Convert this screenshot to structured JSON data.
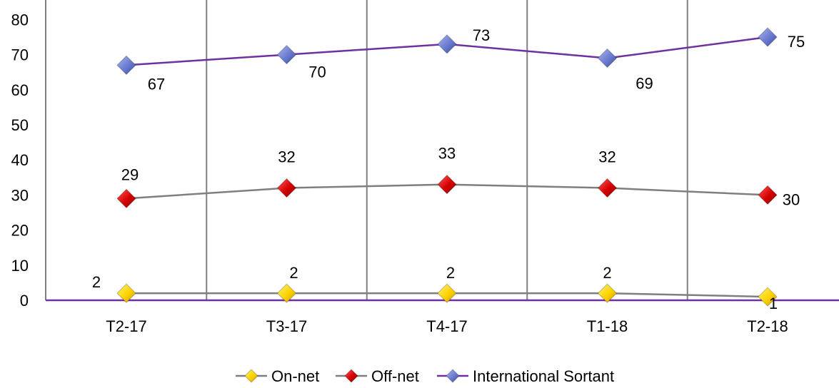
{
  "chart_data": {
    "type": "line",
    "title": "",
    "xlabel": "",
    "ylabel": "",
    "categories": [
      "T2-17",
      "T3-17",
      "T4-17",
      "T1-18",
      "T2-18"
    ],
    "ylim": [
      0,
      80
    ],
    "yticks": [
      0,
      10,
      20,
      30,
      40,
      50,
      60,
      70,
      80
    ],
    "grid": "vertical",
    "legend_position": "bottom",
    "series": [
      {
        "name": "On-net",
        "values": [
          2,
          2,
          2,
          2,
          1
        ],
        "line_color": "#7f7f7f",
        "marker_color": "#ffd200",
        "marker": "diamond"
      },
      {
        "name": "Off-net",
        "values": [
          29,
          32,
          33,
          32,
          30
        ],
        "line_color": "#7f7f7f",
        "marker_color": "#d40000",
        "marker": "diamond"
      },
      {
        "name": "International Sortant",
        "values": [
          67,
          70,
          73,
          69,
          75
        ],
        "line_color": "#7030a0",
        "marker_color": "#5b6fc9",
        "marker": "diamond"
      }
    ]
  },
  "colors": {
    "axis": "#7030a0",
    "grid": "#808080"
  }
}
